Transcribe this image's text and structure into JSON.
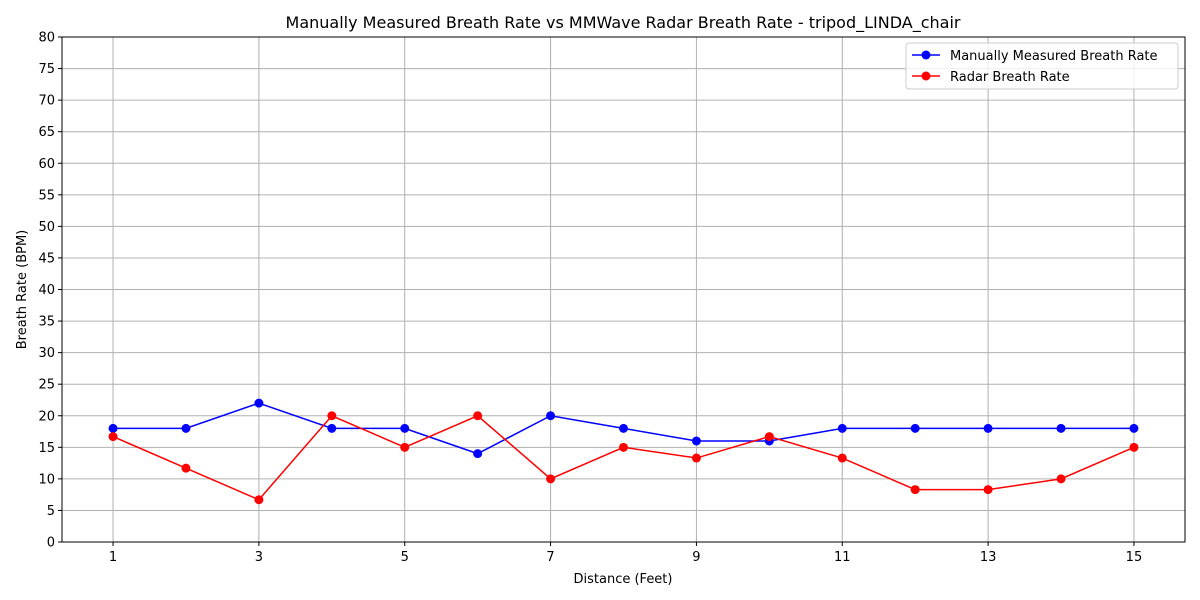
{
  "chart_data": {
    "type": "line",
    "title": "Manually Measured Breath Rate vs MMWave Radar Breath Rate - tripod_LINDA_chair",
    "xlabel": "Distance (Feet)",
    "ylabel": "Breath Rate (BPM)",
    "x": [
      1,
      2,
      3,
      4,
      5,
      6,
      7,
      8,
      9,
      10,
      11,
      12,
      13,
      14,
      15
    ],
    "xlim": [
      0.3,
      15.7
    ],
    "ylim": [
      0,
      80
    ],
    "xticks": [
      1,
      3,
      5,
      7,
      9,
      11,
      13,
      15
    ],
    "yticks": [
      0,
      5,
      10,
      15,
      20,
      25,
      30,
      35,
      40,
      45,
      50,
      55,
      60,
      65,
      70,
      75,
      80
    ],
    "grid": true,
    "legend_position": "top-right",
    "series": [
      {
        "name": "Manually Measured Breath Rate",
        "color": "#0000ff",
        "values": [
          18,
          18,
          22,
          18,
          18,
          14,
          20,
          18,
          16,
          16,
          18,
          18,
          18,
          18,
          18
        ]
      },
      {
        "name": "Radar Breath Rate",
        "color": "#ff0000",
        "values": [
          16.7,
          11.7,
          6.7,
          20,
          15,
          20,
          10,
          15,
          13.3,
          16.7,
          13.3,
          8.3,
          8.3,
          10,
          15
        ]
      }
    ]
  }
}
